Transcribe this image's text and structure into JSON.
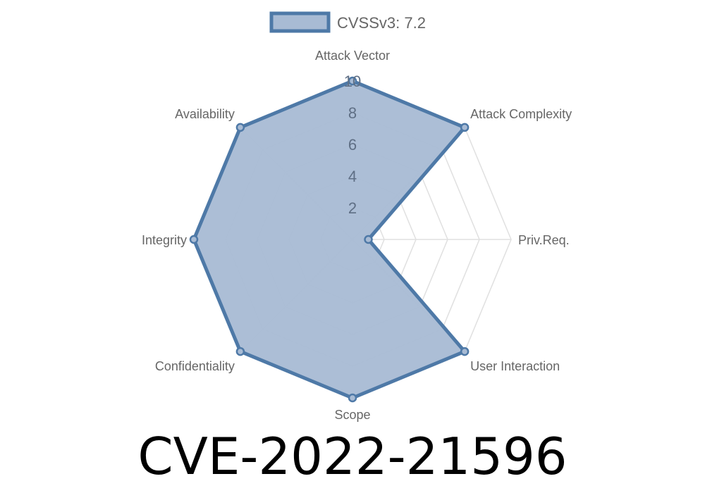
{
  "chart_data": {
    "type": "radar",
    "categories": [
      "Attack Vector",
      "Attack Complexity",
      "Priv.Req.",
      "User Interaction",
      "Scope",
      "Confidentiality",
      "Integrity",
      "Availability"
    ],
    "series": [
      {
        "name": "CVSSv3: 7.2",
        "values": [
          10,
          10,
          1,
          10,
          10,
          10,
          10,
          10
        ]
      }
    ],
    "rlim": [
      0,
      10
    ],
    "ticks": [
      "2",
      "4",
      "6",
      "8",
      "10"
    ],
    "legend": "top",
    "colors": {
      "line": "#4e79a7",
      "fill": "#a8bbd4",
      "grid": "#e0e0e0",
      "text": "#666666"
    }
  },
  "title": "CVE-2022-21596"
}
